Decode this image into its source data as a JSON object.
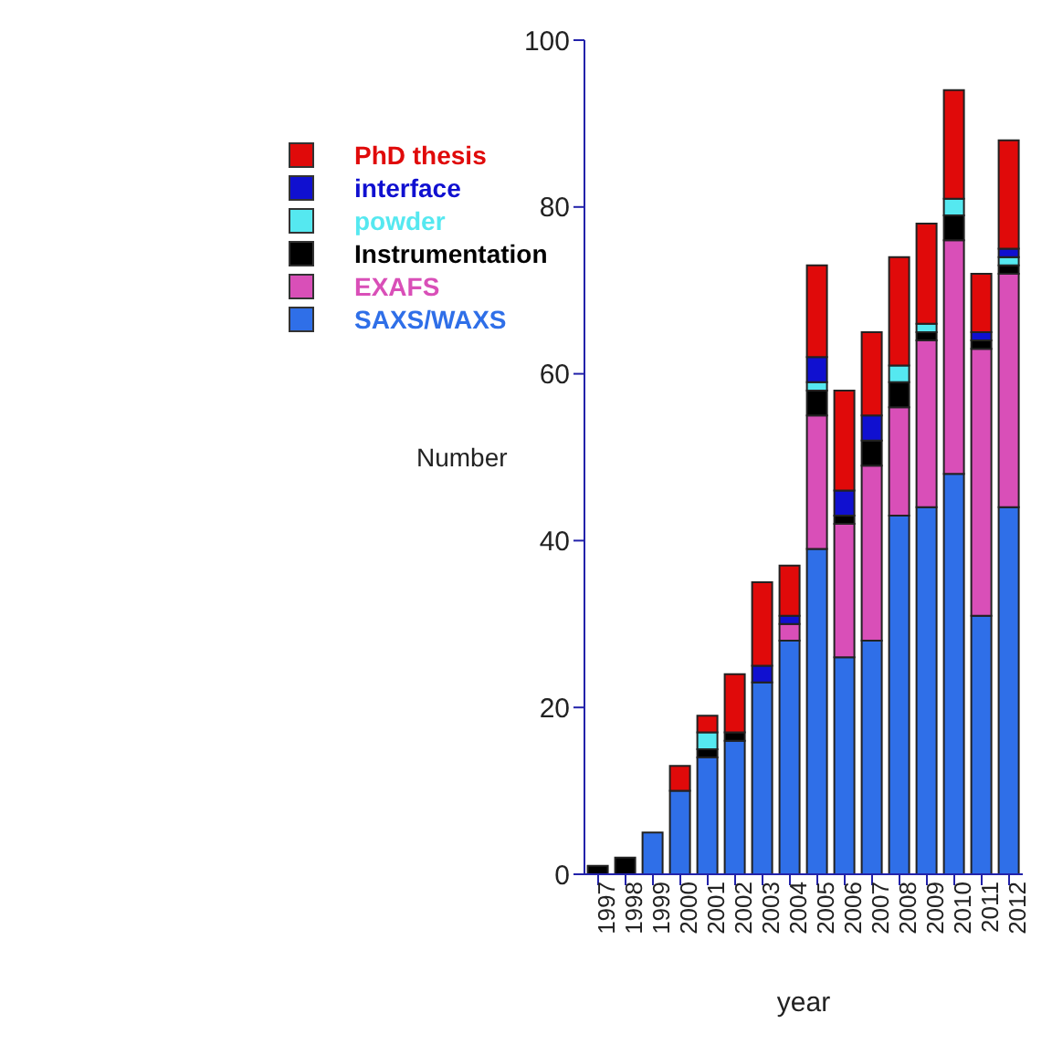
{
  "chart_data": {
    "type": "bar",
    "stacked": true,
    "xlabel": "year",
    "ylabel": "Number",
    "categories": [
      "1997",
      "1998",
      "1999",
      "2000",
      "2001",
      "2002",
      "2003",
      "2004",
      "2005",
      "2006",
      "2007",
      "2008",
      "2009",
      "2010",
      "2011",
      "2012"
    ],
    "series": [
      {
        "name": "SAXS/WAXS",
        "color": "#2f6fe8",
        "values": [
          0,
          0,
          5,
          10,
          14,
          16,
          23,
          28,
          39,
          26,
          28,
          43,
          44,
          48,
          31,
          44
        ]
      },
      {
        "name": "EXAFS",
        "color": "#d94fb8",
        "values": [
          0,
          0,
          0,
          0,
          0,
          0,
          0,
          2,
          16,
          16,
          21,
          13,
          20,
          28,
          32,
          28
        ]
      },
      {
        "name": "Instrumentation",
        "color": "#000000",
        "values": [
          1,
          2,
          0,
          0,
          1,
          1,
          0,
          0,
          3,
          1,
          3,
          3,
          1,
          3,
          1,
          1
        ]
      },
      {
        "name": "powder",
        "color": "#55e8f0",
        "values": [
          0,
          0,
          0,
          0,
          2,
          0,
          0,
          0,
          1,
          0,
          0,
          2,
          1,
          2,
          0,
          1
        ]
      },
      {
        "name": "interface",
        "color": "#1010d0",
        "values": [
          0,
          0,
          0,
          0,
          0,
          0,
          2,
          1,
          3,
          3,
          3,
          0,
          0,
          0,
          1,
          1
        ]
      },
      {
        "name": "PhD thesis",
        "color": "#e00a0a",
        "values": [
          0,
          0,
          0,
          3,
          2,
          7,
          10,
          6,
          11,
          12,
          10,
          13,
          12,
          13,
          7,
          13
        ]
      }
    ],
    "ylim": [
      0,
      100
    ],
    "yticks": [
      0,
      20,
      40,
      60,
      80,
      100
    ],
    "grid": false,
    "legend": "top left"
  }
}
